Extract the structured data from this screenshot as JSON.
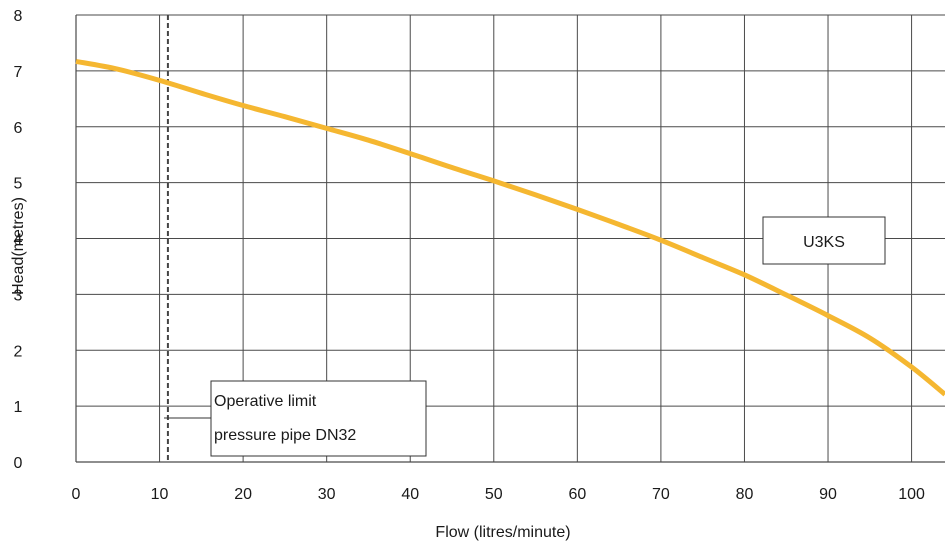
{
  "chart_data": {
    "type": "line",
    "xlabel": "Flow (litres/minute)",
    "ylabel": "Head(metres)",
    "xlim": [
      0,
      104
    ],
    "ylim": [
      0,
      8
    ],
    "x_ticks": [
      0,
      10,
      20,
      30,
      40,
      50,
      60,
      70,
      80,
      90,
      100
    ],
    "y_ticks": [
      0,
      1,
      2,
      3,
      4,
      5,
      6,
      7,
      8
    ],
    "grid": true,
    "series": [
      {
        "name": "U3KS",
        "color": "#F5B731",
        "x": [
          0,
          5,
          10,
          15,
          20,
          25,
          30,
          35,
          40,
          45,
          50,
          55,
          60,
          65,
          70,
          75,
          80,
          85,
          90,
          95,
          100,
          104
        ],
        "y": [
          7.17,
          7.03,
          6.83,
          6.6,
          6.38,
          6.18,
          5.97,
          5.76,
          5.52,
          5.27,
          5.03,
          4.78,
          4.52,
          4.25,
          3.97,
          3.66,
          3.35,
          2.99,
          2.62,
          2.22,
          1.7,
          1.21
        ]
      }
    ],
    "reference_line": {
      "x": 11,
      "style": "dashed",
      "color": "#444444"
    },
    "annotations": [
      {
        "id": "limit",
        "lines": [
          "Operative limit",
          "pressure pipe DN32"
        ]
      },
      {
        "id": "series",
        "lines": [
          "U3KS"
        ]
      }
    ]
  }
}
